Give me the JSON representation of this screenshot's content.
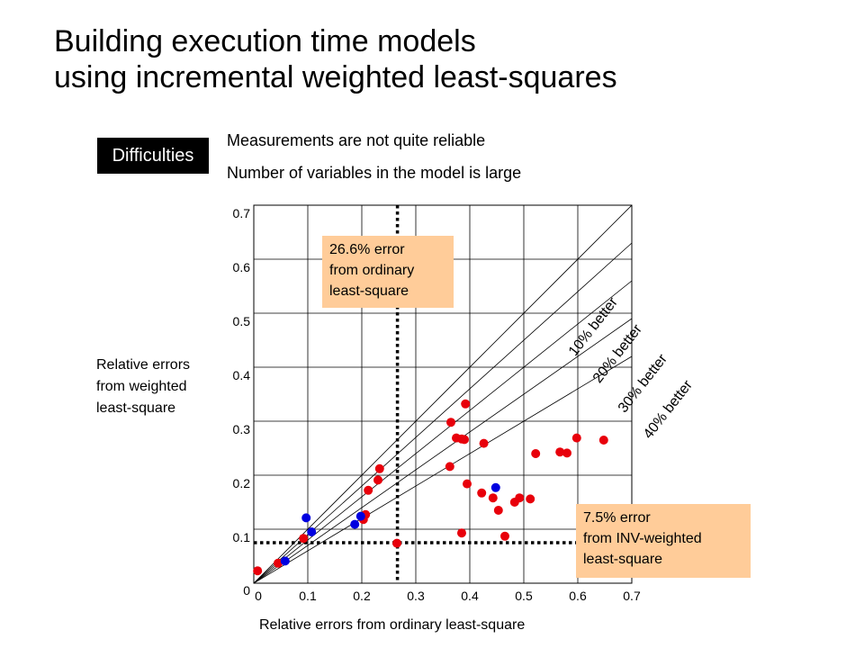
{
  "title_line1": "Building execution time models",
  "title_line2": "using incremental weighted least-squares",
  "badge": "Difficulties",
  "notes": [
    "Measurements are not quite reliable",
    "Number of variables in the model is large"
  ],
  "chart_data": {
    "type": "scatter",
    "xlabel": "Relative errors from ordinary least-square",
    "ylabel": "Relative errors from weighted least-square",
    "xlim": [
      0,
      0.7
    ],
    "ylim": [
      0,
      0.7
    ],
    "xticks": [
      "0",
      "0.1",
      "0.2",
      "0.3",
      "0.4",
      "0.5",
      "0.6",
      "0.7"
    ],
    "yticks": [
      "0",
      "0.1",
      "0.2",
      "0.3",
      "0.4",
      "0.5",
      "0.6",
      "0.7"
    ],
    "grid": true,
    "colors": {
      "red": "#e8000b",
      "blue": "#0000e0",
      "callout": "#ffcc99"
    },
    "series": [
      {
        "color": "red",
        "points": [
          [
            0.007,
            0.023
          ],
          [
            0.045,
            0.037
          ],
          [
            0.092,
            0.083
          ],
          [
            0.203,
            0.118
          ],
          [
            0.207,
            0.127
          ],
          [
            0.212,
            0.172
          ],
          [
            0.23,
            0.191
          ],
          [
            0.233,
            0.212
          ],
          [
            0.265,
            0.074
          ],
          [
            0.363,
            0.216
          ],
          [
            0.365,
            0.298
          ],
          [
            0.375,
            0.269
          ],
          [
            0.385,
            0.267
          ],
          [
            0.39,
            0.266
          ],
          [
            0.392,
            0.332
          ],
          [
            0.395,
            0.184
          ],
          [
            0.385,
            0.093
          ],
          [
            0.422,
            0.167
          ],
          [
            0.426,
            0.259
          ],
          [
            0.443,
            0.158
          ],
          [
            0.453,
            0.135
          ],
          [
            0.465,
            0.087
          ],
          [
            0.483,
            0.15
          ],
          [
            0.492,
            0.158
          ],
          [
            0.512,
            0.156
          ],
          [
            0.522,
            0.24
          ],
          [
            0.567,
            0.243
          ],
          [
            0.58,
            0.241
          ],
          [
            0.598,
            0.269
          ],
          [
            0.648,
            0.265
          ]
        ]
      },
      {
        "color": "blue",
        "points": [
          [
            0.058,
            0.041
          ],
          [
            0.097,
            0.121
          ],
          [
            0.107,
            0.095
          ],
          [
            0.187,
            0.109
          ],
          [
            0.198,
            0.124
          ],
          [
            0.448,
            0.177
          ]
        ]
      }
    ],
    "reference_lines": [
      {
        "label": "10% better",
        "slope": 0.9
      },
      {
        "label": "20% better",
        "slope": 0.8
      },
      {
        "label": "30% better",
        "slope": 0.7
      },
      {
        "label": "40% better",
        "slope": 0.6
      }
    ],
    "vertical_ref": {
      "x": 0.266
    },
    "horizontal_ref": {
      "y": 0.075
    },
    "annotations": [
      "26.6% error\nfrom ordinary\nleast-square",
      "7.5% error\nfrom INV-weighted\nleast-square"
    ]
  }
}
